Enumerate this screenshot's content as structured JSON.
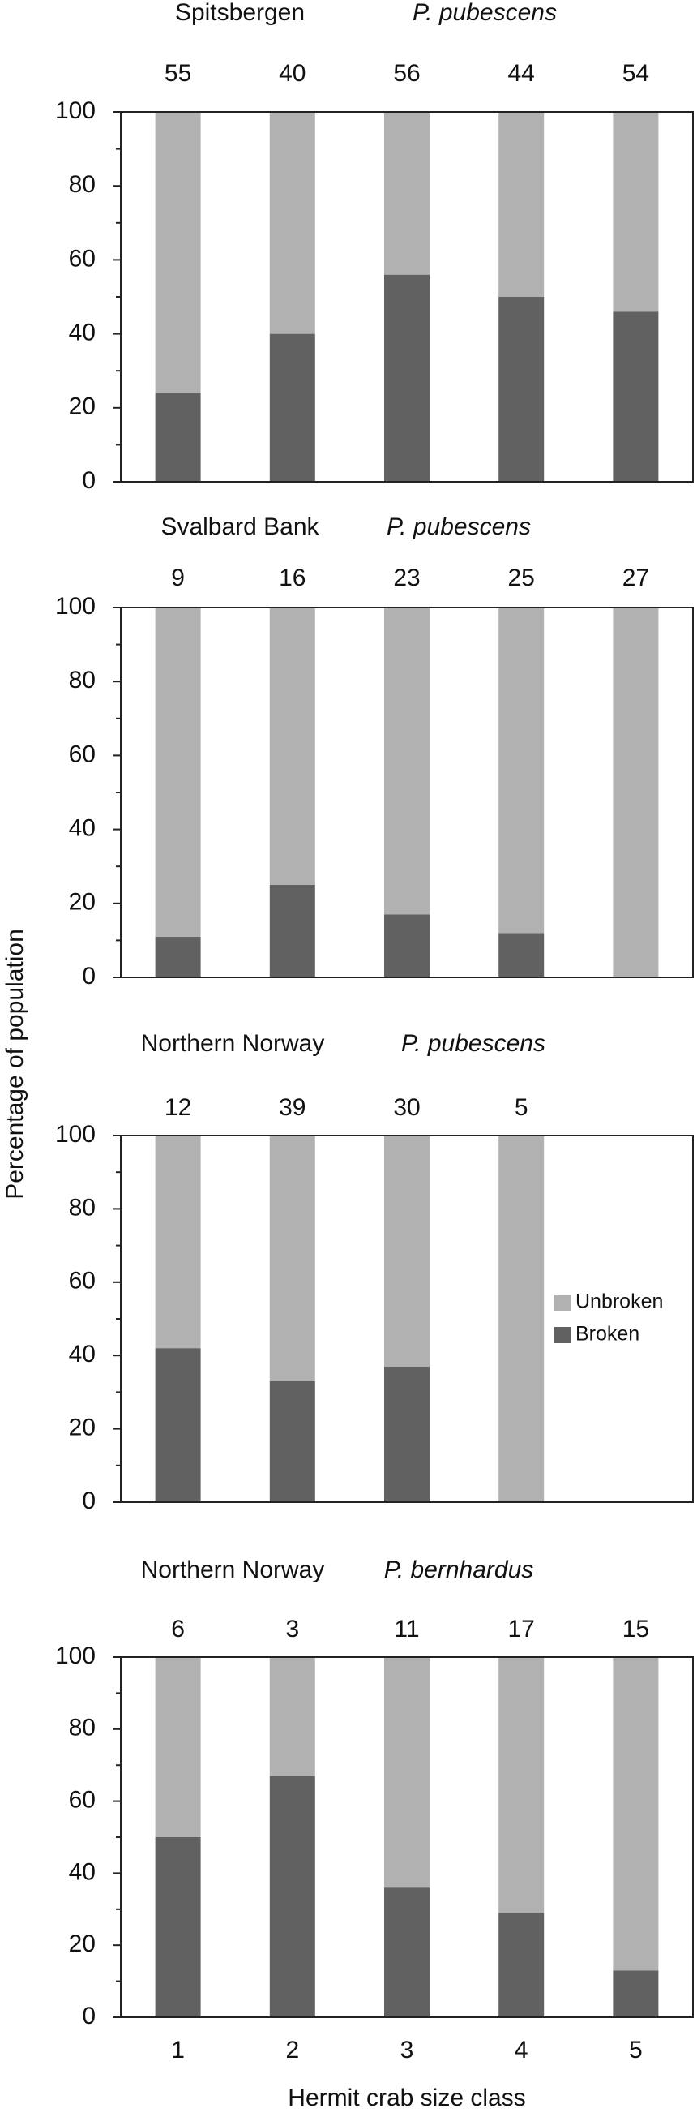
{
  "axis_labels": {
    "y": "Percentage of population",
    "x": "Hermit crab size class"
  },
  "chart_data": [
    {
      "type": "bar",
      "stacked": true,
      "title": "Spitsbergen",
      "subtitle": "P. pubescens",
      "sample_sizes": [
        55,
        40,
        56,
        44,
        54
      ],
      "series": [
        {
          "name": "Broken",
          "color": "#616161",
          "values": [
            24,
            40,
            56,
            50,
            46
          ]
        },
        {
          "name": "Unbroken",
          "color": "#b1b1b1",
          "values": [
            76,
            60,
            44,
            50,
            54
          ]
        }
      ],
      "ylim": [
        0,
        100
      ],
      "yticks": [
        0,
        20,
        40,
        60,
        80,
        100
      ],
      "yminorticks": [
        10,
        30,
        50,
        70,
        90
      ]
    },
    {
      "type": "bar",
      "stacked": true,
      "title": "Svalbard Bank",
      "subtitle": "P. pubescens",
      "sample_sizes": [
        9,
        16,
        23,
        25,
        27
      ],
      "series": [
        {
          "name": "Broken",
          "color": "#616161",
          "values": [
            11,
            25,
            17,
            12,
            0
          ]
        },
        {
          "name": "Unbroken",
          "color": "#b1b1b1",
          "values": [
            89,
            75,
            83,
            88,
            100
          ]
        }
      ],
      "ylim": [
        0,
        100
      ],
      "yticks": [
        0,
        20,
        40,
        60,
        80,
        100
      ],
      "yminorticks": [
        10,
        30,
        50,
        70,
        90
      ]
    },
    {
      "type": "bar",
      "stacked": true,
      "title": "Northern Norway",
      "subtitle": "P. pubescens",
      "sample_sizes": [
        12,
        39,
        30,
        5,
        null
      ],
      "series": [
        {
          "name": "Broken",
          "color": "#616161",
          "values": [
            42,
            33,
            37,
            0,
            null
          ]
        },
        {
          "name": "Unbroken",
          "color": "#b1b1b1",
          "values": [
            58,
            67,
            63,
            100,
            null
          ]
        }
      ],
      "ylim": [
        0,
        100
      ],
      "yticks": [
        0,
        20,
        40,
        60,
        80,
        100
      ],
      "yminorticks": [
        10,
        30,
        50,
        70,
        90
      ],
      "legend": "center right"
    },
    {
      "type": "bar",
      "stacked": true,
      "title": "Northern Norway",
      "subtitle": "P. bernhardus",
      "categories": [
        "1",
        "2",
        "3",
        "4",
        "5"
      ],
      "sample_sizes": [
        6,
        3,
        11,
        17,
        15
      ],
      "series": [
        {
          "name": "Broken",
          "color": "#616161",
          "values": [
            50,
            67,
            36,
            29,
            13
          ]
        },
        {
          "name": "Unbroken",
          "color": "#b1b1b1",
          "values": [
            50,
            33,
            64,
            71,
            87
          ]
        }
      ],
      "ylim": [
        0,
        100
      ],
      "yticks": [
        0,
        20,
        40,
        60,
        80,
        100
      ],
      "yminorticks": [
        10,
        30,
        50,
        70,
        90
      ]
    }
  ]
}
